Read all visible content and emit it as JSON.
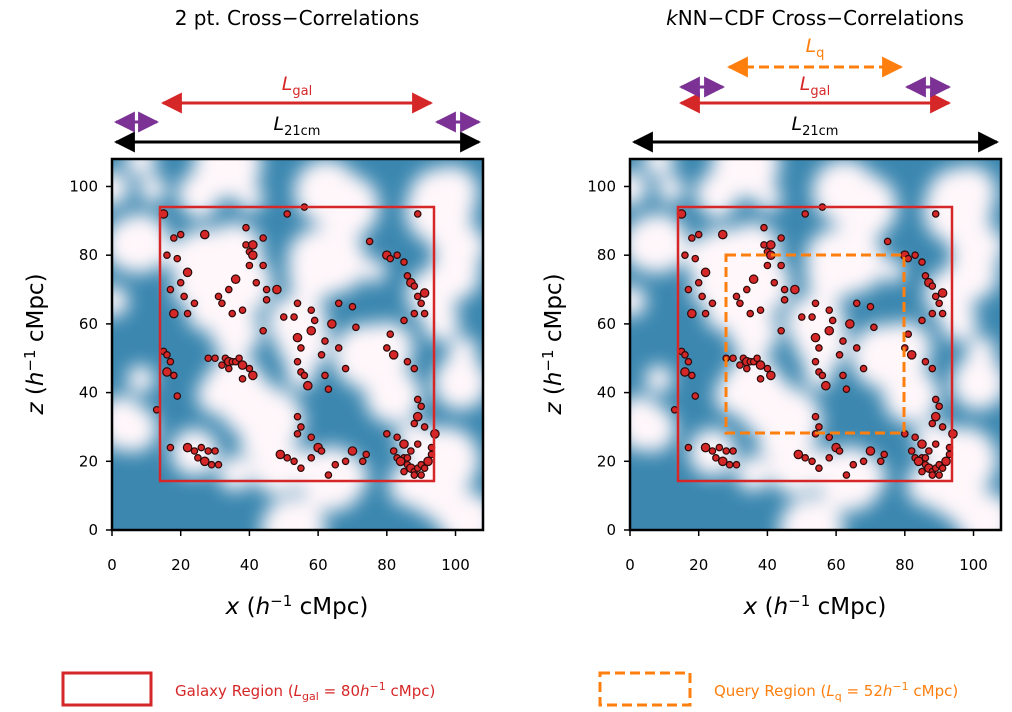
{
  "colors": {
    "galaxy_red": "#d62728",
    "query_orange": "#ff7f0e",
    "buffer_purple": "#7b3294",
    "field_blue": "#3b87b0",
    "field_white": "#fff7fa"
  },
  "chart_data": [
    {
      "type": "scatter",
      "title": "2 pt. Cross−Correlations",
      "xlabel": "x (h⁻¹ cMpc)",
      "ylabel": "z (h⁻¹ cMpc)",
      "xlim": [
        0,
        108
      ],
      "ylim": [
        0,
        108
      ],
      "xticks": [
        "0",
        "20",
        "40",
        "60",
        "80",
        "100"
      ],
      "yticks": [
        "0",
        "20",
        "40",
        "60",
        "80",
        "100"
      ],
      "background": "21cm brightness field (blue/white)",
      "galaxy_region": [
        14,
        94,
        14,
        94
      ],
      "annotations": {
        "l21_label": "L",
        "l21_sub": "21cm",
        "lgal_label": "L",
        "lgal_sub": "gal"
      },
      "points": "galaxies"
    },
    {
      "type": "scatter",
      "title_italic": "k",
      "title_rest": "NN−CDF Cross−Correlations",
      "xlabel": "x (h⁻¹ cMpc)",
      "ylabel": "z (h⁻¹ cMpc)",
      "xlim": [
        0,
        108
      ],
      "ylim": [
        0,
        108
      ],
      "xticks": [
        "0",
        "20",
        "40",
        "60",
        "80",
        "100"
      ],
      "yticks": [
        "0",
        "20",
        "40",
        "60",
        "80",
        "100"
      ],
      "galaxy_region": [
        14,
        94,
        14,
        94
      ],
      "query_region": [
        28,
        80,
        28,
        80
      ],
      "annotations": {
        "l21_label": "L",
        "l21_sub": "21cm",
        "lgal_label": "L",
        "lgal_sub": "gal",
        "lq_label": "L",
        "lq_sub": "q"
      },
      "points": "galaxies"
    }
  ],
  "galaxies": [
    [
      15,
      92
    ],
    [
      18,
      85
    ],
    [
      20,
      86
    ],
    [
      16,
      80
    ],
    [
      19,
      79
    ],
    [
      22,
      75
    ],
    [
      17,
      70
    ],
    [
      20,
      72
    ],
    [
      21,
      68
    ],
    [
      24,
      66
    ],
    [
      18,
      63
    ],
    [
      22,
      63
    ],
    [
      15,
      52
    ],
    [
      16,
      51
    ],
    [
      17,
      49
    ],
    [
      16,
      46
    ],
    [
      18,
      45
    ],
    [
      13,
      35
    ],
    [
      19,
      39
    ],
    [
      17,
      24
    ],
    [
      22,
      24
    ],
    [
      24,
      23
    ],
    [
      26,
      24
    ],
    [
      28,
      23
    ],
    [
      25,
      21
    ],
    [
      27,
      20
    ],
    [
      29,
      19
    ],
    [
      31,
      19
    ],
    [
      30,
      23
    ],
    [
      33,
      50
    ],
    [
      34,
      49
    ],
    [
      35,
      49
    ],
    [
      32,
      48
    ],
    [
      34,
      47
    ],
    [
      36,
      49
    ],
    [
      38,
      48
    ],
    [
      30,
      50
    ],
    [
      37,
      50
    ],
    [
      28,
      50
    ],
    [
      40,
      47
    ],
    [
      41,
      45
    ],
    [
      38,
      44
    ],
    [
      31,
      68
    ],
    [
      32,
      66
    ],
    [
      34,
      70
    ],
    [
      36,
      73
    ],
    [
      35,
      63
    ],
    [
      38,
      64
    ],
    [
      39,
      83
    ],
    [
      40,
      81
    ],
    [
      41,
      80
    ],
    [
      44,
      85
    ],
    [
      40,
      77
    ],
    [
      42,
      72
    ],
    [
      45,
      70
    ],
    [
      48,
      70
    ],
    [
      44,
      58
    ],
    [
      50,
      62
    ],
    [
      54,
      66
    ],
    [
      53,
      62
    ],
    [
      54,
      56
    ],
    [
      55,
      53
    ],
    [
      54,
      49
    ],
    [
      55,
      46
    ],
    [
      56,
      45
    ],
    [
      57,
      42
    ],
    [
      54,
      33
    ],
    [
      55,
      30
    ],
    [
      54,
      28
    ],
    [
      58,
      27
    ],
    [
      60,
      24
    ],
    [
      61,
      23
    ],
    [
      58,
      21
    ],
    [
      55,
      18
    ],
    [
      51,
      21
    ],
    [
      49,
      22
    ],
    [
      53,
      20
    ],
    [
      63,
      16
    ],
    [
      65,
      19
    ],
    [
      68,
      20
    ],
    [
      70,
      23
    ],
    [
      73,
      20
    ],
    [
      74,
      22
    ],
    [
      58,
      64
    ],
    [
      59,
      61
    ],
    [
      58,
      58
    ],
    [
      62,
      45
    ],
    [
      61,
      51
    ],
    [
      62,
      55
    ],
    [
      63,
      41
    ],
    [
      64,
      60
    ],
    [
      66,
      66
    ],
    [
      70,
      65
    ],
    [
      71,
      59
    ],
    [
      75,
      84
    ],
    [
      80,
      80
    ],
    [
      81,
      79
    ],
    [
      83,
      80
    ],
    [
      85,
      78
    ],
    [
      86,
      74
    ],
    [
      87,
      72
    ],
    [
      88,
      71
    ],
    [
      89,
      68
    ],
    [
      90,
      66
    ],
    [
      91,
      63
    ],
    [
      91,
      69
    ],
    [
      88,
      63
    ],
    [
      85,
      61
    ],
    [
      81,
      57
    ],
    [
      80,
      53
    ],
    [
      82,
      51
    ],
    [
      86,
      49
    ],
    [
      88,
      47
    ],
    [
      89,
      38
    ],
    [
      90,
      36
    ],
    [
      89,
      33
    ],
    [
      88,
      31
    ],
    [
      91,
      30
    ],
    [
      80,
      28
    ],
    [
      83,
      27
    ],
    [
      85,
      25
    ],
    [
      82,
      23
    ],
    [
      83,
      21
    ],
    [
      85,
      21
    ],
    [
      86,
      19
    ],
    [
      87,
      18
    ],
    [
      88,
      17
    ],
    [
      89,
      18
    ],
    [
      90,
      19
    ],
    [
      91,
      18
    ],
    [
      92,
      20
    ],
    [
      93,
      22
    ],
    [
      89,
      25
    ],
    [
      87,
      23
    ],
    [
      86,
      21
    ],
    [
      84,
      20
    ],
    [
      85,
      17
    ],
    [
      88,
      16
    ],
    [
      90,
      16
    ],
    [
      93,
      24
    ],
    [
      94,
      28
    ],
    [
      89,
      92
    ],
    [
      56,
      94
    ],
    [
      51,
      92
    ],
    [
      39,
      88
    ],
    [
      27,
      86
    ],
    [
      66,
      53
    ],
    [
      68,
      47
    ],
    [
      45,
      67
    ],
    [
      44,
      77
    ],
    [
      41,
      83
    ]
  ],
  "legend": {
    "galaxy_label_pre": "Galaxy Region (",
    "galaxy_L": "L",
    "galaxy_sub": "gal",
    "galaxy_eq": " = 80",
    "galaxy_unit_h": "h",
    "galaxy_unit_exp": "−1",
    "galaxy_unit_rest": " cMpc)",
    "query_label_pre": "Query Region (",
    "query_L": "L",
    "query_sub": "q",
    "query_eq": " = 52",
    "query_unit_h": "h",
    "query_unit_exp": "−1",
    "query_unit_rest": " cMpc)"
  }
}
